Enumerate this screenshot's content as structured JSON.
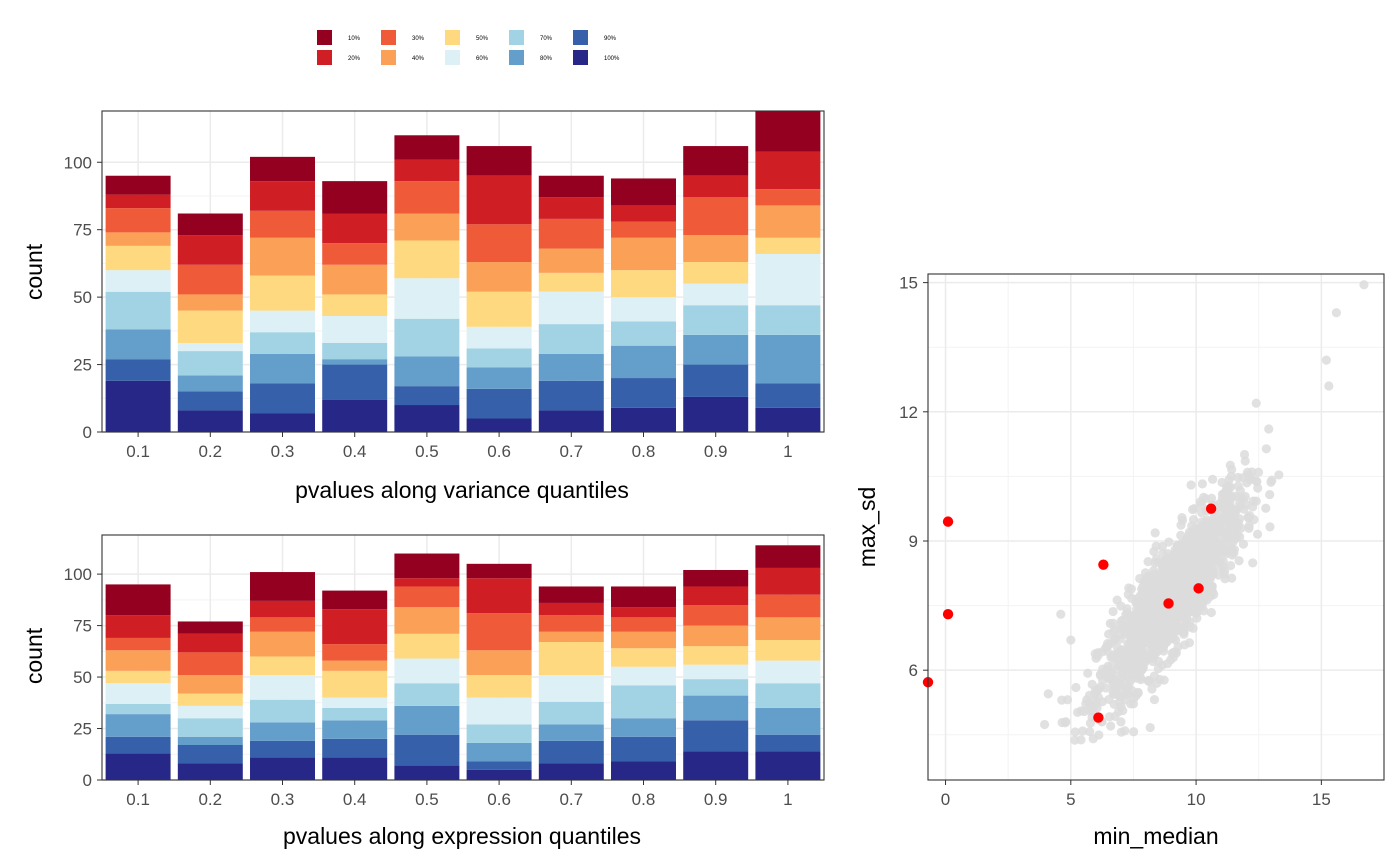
{
  "colors": {
    "tiers": [
      "#94001f",
      "#cf1f24",
      "#ef5b39",
      "#fba057",
      "#fed97f",
      "#dcf0f6",
      "#a2d3e4",
      "#649ecb",
      "#3660a9",
      "#262787"
    ],
    "panel_border": "#333333",
    "grid_major": "#ebebeb",
    "grid_minor": "#f3f3f3",
    "scatter_bg": "#dcdcdc",
    "scatter_highlight": "#ff0000"
  },
  "legend": {
    "labels": [
      "10%",
      "20%",
      "30%",
      "40%",
      "50%",
      "60%",
      "70%",
      "80%",
      "90%",
      "100%"
    ]
  },
  "chart_data": [
    {
      "type": "bar",
      "stacked": true,
      "xlabel": "pvalues along variance quantiles",
      "ylabel": "count",
      "categories": [
        "0.1",
        "0.2",
        "0.3",
        "0.4",
        "0.5",
        "0.6",
        "0.7",
        "0.8",
        "0.9",
        "1"
      ],
      "ylim": [
        0,
        119
      ],
      "yticks": [
        0,
        25,
        50,
        75,
        100
      ],
      "series": [
        {
          "name": "10%",
          "values": [
            7,
            8,
            9,
            12,
            9,
            11,
            8,
            10,
            11,
            15
          ]
        },
        {
          "name": "20%",
          "values": [
            5,
            11,
            11,
            11,
            8,
            18,
            8,
            6,
            8,
            14
          ]
        },
        {
          "name": "30%",
          "values": [
            9,
            11,
            10,
            8,
            12,
            14,
            11,
            6,
            14,
            6
          ]
        },
        {
          "name": "40%",
          "values": [
            5,
            6,
            14,
            11,
            10,
            11,
            9,
            12,
            10,
            12
          ]
        },
        {
          "name": "50%",
          "values": [
            9,
            12,
            13,
            8,
            14,
            13,
            7,
            10,
            8,
            6
          ]
        },
        {
          "name": "60%",
          "values": [
            8,
            3,
            8,
            10,
            15,
            8,
            12,
            9,
            8,
            19
          ]
        },
        {
          "name": "70%",
          "values": [
            14,
            9,
            8,
            6,
            14,
            7,
            11,
            9,
            11,
            11
          ]
        },
        {
          "name": "80%",
          "values": [
            11,
            6,
            11,
            2,
            11,
            8,
            10,
            12,
            11,
            18
          ]
        },
        {
          "name": "90%",
          "values": [
            8,
            7,
            11,
            13,
            7,
            11,
            11,
            11,
            12,
            9
          ]
        },
        {
          "name": "100%",
          "values": [
            19,
            8,
            7,
            12,
            10,
            5,
            8,
            9,
            13,
            9
          ]
        }
      ]
    },
    {
      "type": "bar",
      "stacked": true,
      "xlabel": "pvalues along expression quantiles",
      "ylabel": "count",
      "categories": [
        "0.1",
        "0.2",
        "0.3",
        "0.4",
        "0.5",
        "0.6",
        "0.7",
        "0.8",
        "0.9",
        "1"
      ],
      "ylim": [
        0,
        119
      ],
      "yticks": [
        0,
        25,
        50,
        75,
        100
      ],
      "series": [
        {
          "name": "10%",
          "values": [
            15,
            6,
            14,
            9,
            12,
            7,
            8,
            10,
            8,
            11
          ]
        },
        {
          "name": "20%",
          "values": [
            11,
            9,
            8,
            17,
            4,
            17,
            6,
            5,
            9,
            13
          ]
        },
        {
          "name": "30%",
          "values": [
            6,
            11,
            7,
            8,
            10,
            18,
            8,
            7,
            10,
            11
          ]
        },
        {
          "name": "40%",
          "values": [
            10,
            9,
            12,
            5,
            13,
            12,
            5,
            8,
            10,
            11
          ]
        },
        {
          "name": "50%",
          "values": [
            6,
            6,
            9,
            13,
            12,
            11,
            16,
            9,
            9,
            10
          ]
        },
        {
          "name": "60%",
          "values": [
            10,
            6,
            12,
            5,
            12,
            13,
            13,
            9,
            7,
            11
          ]
        },
        {
          "name": "70%",
          "values": [
            5,
            9,
            11,
            6,
            11,
            9,
            11,
            16,
            8,
            12
          ]
        },
        {
          "name": "80%",
          "values": [
            11,
            4,
            9,
            9,
            14,
            9,
            8,
            9,
            12,
            13
          ]
        },
        {
          "name": "90%",
          "values": [
            8,
            9,
            8,
            9,
            15,
            4,
            11,
            12,
            15,
            8
          ]
        },
        {
          "name": "100%",
          "values": [
            13,
            8,
            11,
            11,
            7,
            5,
            8,
            9,
            14,
            14
          ]
        }
      ]
    },
    {
      "type": "scatter",
      "xlabel": "min_median",
      "ylabel": "max_sd",
      "xlim": [
        -0.7,
        17.5
      ],
      "ylim": [
        3.45,
        15.2
      ],
      "xticks": [
        0,
        5,
        10,
        15
      ],
      "yticks": [
        6,
        9,
        12,
        15
      ],
      "background_points": {
        "description_count": 1500,
        "trend": {
          "slope": 0.72,
          "intercept": 1.2
        },
        "notable": [
          {
            "x": 16.7,
            "y": 14.95
          },
          {
            "x": 15.6,
            "y": 14.3
          },
          {
            "x": 15.2,
            "y": 13.2
          },
          {
            "x": 15.3,
            "y": 12.6
          },
          {
            "x": 12.4,
            "y": 12.2
          },
          {
            "x": 12.9,
            "y": 11.6
          },
          {
            "x": 4.1,
            "y": 5.45
          },
          {
            "x": 4.6,
            "y": 7.3
          },
          {
            "x": 5.0,
            "y": 6.7
          },
          {
            "x": 6.1,
            "y": 4.9
          },
          {
            "x": 7.0,
            "y": 4.8
          },
          {
            "x": 9.8,
            "y": 10.3
          }
        ]
      },
      "highlighted_points": [
        {
          "x": 0.1,
          "y": 9.45
        },
        {
          "x": 0.1,
          "y": 7.3
        },
        {
          "x": -0.7,
          "y": 5.72
        },
        {
          "x": 6.3,
          "y": 8.45
        },
        {
          "x": 10.6,
          "y": 9.75
        },
        {
          "x": 10.1,
          "y": 7.9
        },
        {
          "x": 8.9,
          "y": 7.55
        },
        {
          "x": 6.1,
          "y": 4.9
        }
      ]
    }
  ]
}
